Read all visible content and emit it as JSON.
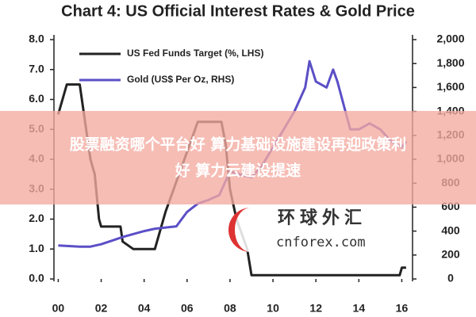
{
  "chart_data": {
    "type": "line",
    "title": "Chart 4: US Official Interest Rates & Gold Price",
    "xlim": [
      -0.2,
      16.5
    ],
    "xticks": [
      {
        "value": 0,
        "label": "00"
      },
      {
        "value": 2,
        "label": "02"
      },
      {
        "value": 4,
        "label": "04"
      },
      {
        "value": 6,
        "label": "06"
      },
      {
        "value": 8,
        "label": "08"
      },
      10,
      12,
      14,
      16
    ],
    "ylim": [
      0,
      8
    ],
    "yticks": [
      {
        "value": 0,
        "label": "0.0"
      },
      {
        "value": 1,
        "label": "1.0"
      },
      {
        "value": 2,
        "label": "2.0"
      },
      {
        "value": 3,
        "label": "3.0"
      },
      {
        "value": 4,
        "label": "4.0"
      },
      {
        "value": 5,
        "label": "5.0"
      },
      {
        "value": 6,
        "label": "6.0"
      },
      {
        "value": 7,
        "label": "7.0"
      },
      {
        "value": 8,
        "label": "8.0"
      }
    ],
    "y2lim": [
      0,
      2000
    ],
    "y2ticks": [
      0,
      200,
      400,
      600,
      800,
      {
        "value": 1000,
        "label": "1,000"
      },
      {
        "value": 1200,
        "label": "1,200"
      },
      {
        "value": 1400,
        "label": "1,400"
      },
      {
        "value": 1600,
        "label": "1,600"
      },
      {
        "value": 1800,
        "label": "1,800"
      },
      {
        "value": 2000,
        "label": "2,000"
      }
    ],
    "series": [
      {
        "name": "US Fed Funds Target (%, LHS)",
        "color": "#222222",
        "x": [
          0,
          0.1,
          0.2,
          0.4,
          1.0,
          1.1,
          1.3,
          1.5,
          1.7,
          1.9,
          2.0,
          2.9,
          3.0,
          3.5,
          4.5,
          5.0,
          5.5,
          6.0,
          6.5,
          7.6,
          7.8,
          8.0,
          8.3,
          8.8,
          9.0,
          15.9,
          16.0,
          16.2
        ],
        "values": [
          5.5,
          5.75,
          6.0,
          6.5,
          6.5,
          6.0,
          5.0,
          4.0,
          3.5,
          2.0,
          1.75,
          1.75,
          1.25,
          1.0,
          1.0,
          2.25,
          3.25,
          4.25,
          5.25,
          5.25,
          4.5,
          3.0,
          2.0,
          1.0,
          0.125,
          0.125,
          0.375,
          0.375
        ]
      },
      {
        "name": "Gold (US$ Per Oz, RHS)",
        "color": "#5b4fc7",
        "axis": "y2",
        "x": [
          0,
          1,
          1.5,
          2,
          2.5,
          3,
          4,
          4.5,
          5,
          5.5,
          6,
          6.5,
          7,
          7.5,
          8,
          8.5,
          9,
          9.5,
          10,
          10.5,
          11,
          11.5,
          11.7,
          12,
          12.5,
          12.8,
          13,
          13.3,
          13.6,
          14,
          14.5,
          15,
          15.5,
          16,
          16.2
        ],
        "values": [
          280,
          270,
          270,
          290,
          320,
          350,
          400,
          420,
          430,
          440,
          560,
          630,
          660,
          700,
          900,
          870,
          850,
          950,
          1100,
          1250,
          1400,
          1600,
          1820,
          1650,
          1600,
          1750,
          1650,
          1450,
          1250,
          1250,
          1300,
          1250,
          1150,
          1100,
          1150
        ]
      }
    ]
  },
  "banner": {
    "lines": [
      "股票融资哪个平台好 算力基础设施建设再迎政策利",
      "好 算力云建设提速"
    ]
  },
  "watermark": {
    "name": "环球外汇",
    "site": "cnforex.com"
  }
}
